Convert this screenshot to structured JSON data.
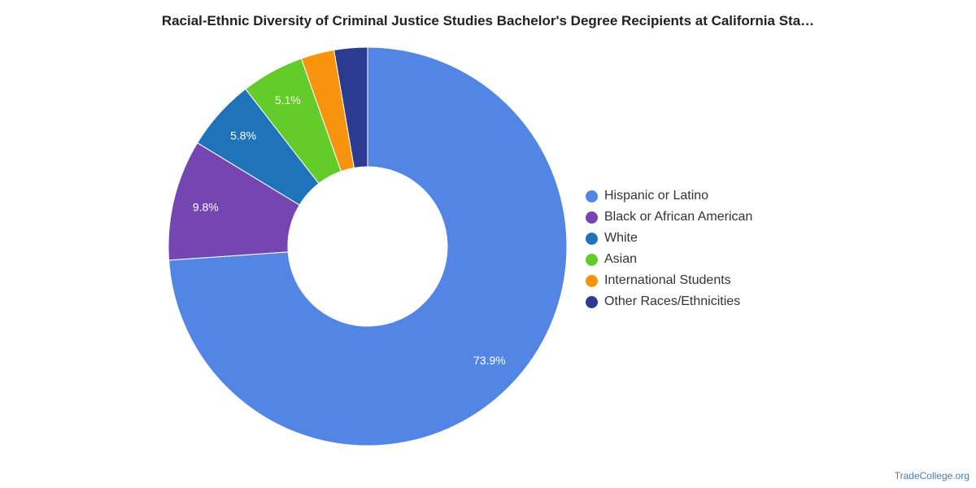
{
  "chart_data": {
    "type": "pie",
    "title": "Racial-Ethnic Diversity of Criminal Justice Studies Bachelor's Degree Recipients at California Sta…",
    "categories": [
      "Hispanic or Latino",
      "Black or African American",
      "White",
      "Asian",
      "International Students",
      "Other Races/Ethnicities"
    ],
    "values": [
      73.9,
      9.8,
      5.8,
      5.1,
      2.7,
      2.7
    ],
    "data_labels": [
      "73.9%",
      "9.8%",
      "5.8%",
      "5.1%",
      "",
      ""
    ],
    "colors": [
      "#5386e4",
      "#7546b2",
      "#1f73b8",
      "#63cc2a",
      "#f8930d",
      "#2c3b90"
    ],
    "donut": true,
    "legend_position": "right"
  },
  "footer": {
    "credit": "TradeCollege.org"
  }
}
